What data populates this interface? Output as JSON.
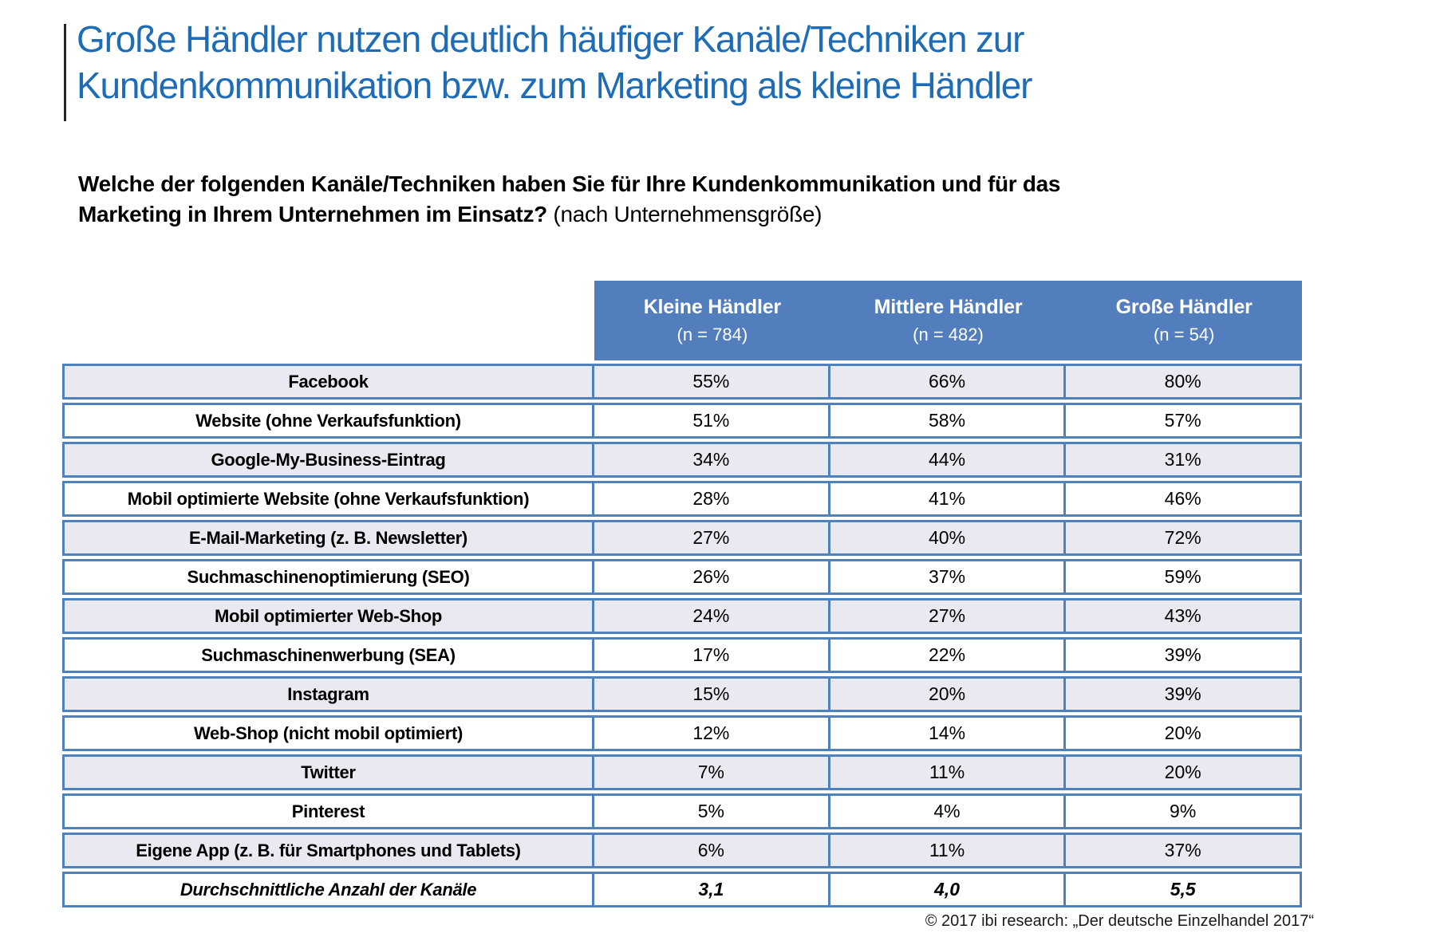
{
  "title": {
    "line1": "Große Händler nutzen deutlich häufiger Kanäle/Techniken zur",
    "line2": "Kundenkommunikation bzw. zum Marketing als kleine Händler"
  },
  "question": {
    "line1": "Welche der folgenden Kanäle/Techniken haben Sie für Ihre Kundenkommunikation und für das",
    "line2_bold": "Marketing in Ihrem Unternehmen im Einsatz?",
    "line2_rest": " (nach Unternehmensgröße)"
  },
  "chart_data": {
    "type": "table",
    "title": "Welche der folgenden Kanäle/Techniken haben Sie für Ihre Kundenkommunikation und für das Marketing in Ihrem Unternehmen im Einsatz? (nach Unternehmensgröße)",
    "columns": [
      {
        "label": "Kleine Händler",
        "n": "(n = 784)"
      },
      {
        "label": "Mittlere Händler",
        "n": "(n = 482)"
      },
      {
        "label": "Große Händler",
        "n": "(n = 54)"
      }
    ],
    "rows": [
      {
        "label": "Facebook",
        "values": [
          "55%",
          "66%",
          "80%"
        ]
      },
      {
        "label": "Website (ohne Verkaufsfunktion)",
        "values": [
          "51%",
          "58%",
          "57%"
        ]
      },
      {
        "label": "Google-My-Business-Eintrag",
        "values": [
          "34%",
          "44%",
          "31%"
        ]
      },
      {
        "label": "Mobil optimierte Website (ohne Verkaufsfunktion)",
        "values": [
          "28%",
          "41%",
          "46%"
        ]
      },
      {
        "label": "E-Mail-Marketing (z. B. Newsletter)",
        "values": [
          "27%",
          "40%",
          "72%"
        ]
      },
      {
        "label": "Suchmaschinenoptimierung (SEO)",
        "values": [
          "26%",
          "37%",
          "59%"
        ]
      },
      {
        "label": "Mobil optimierter Web-Shop",
        "values": [
          "24%",
          "27%",
          "43%"
        ]
      },
      {
        "label": "Suchmaschinenwerbung (SEA)",
        "values": [
          "17%",
          "22%",
          "39%"
        ]
      },
      {
        "label": "Instagram",
        "values": [
          "15%",
          "20%",
          "39%"
        ]
      },
      {
        "label": "Web-Shop (nicht mobil optimiert)",
        "values": [
          "12%",
          "14%",
          "20%"
        ]
      },
      {
        "label": "Twitter",
        "values": [
          "7%",
          "11%",
          "20%"
        ]
      },
      {
        "label": "Pinterest",
        "values": [
          "5%",
          "4%",
          "9%"
        ]
      },
      {
        "label": "Eigene App (z. B. für Smartphones und Tablets)",
        "values": [
          "6%",
          "11%",
          "37%"
        ]
      },
      {
        "label": "Durchschnittliche Anzahl der Kanäle",
        "values": [
          "3,1",
          "4,0",
          "5,5"
        ],
        "emphasis": true
      }
    ]
  },
  "colors": {
    "title_blue": "#1E6CB5",
    "header_fill": "#537EBD",
    "table_border": "#4F81BD",
    "banded_row": "#E9E9F1"
  },
  "footer": {
    "text": "© 2017 ibi research: „Der deutsche Einzelhandel 2017“"
  }
}
